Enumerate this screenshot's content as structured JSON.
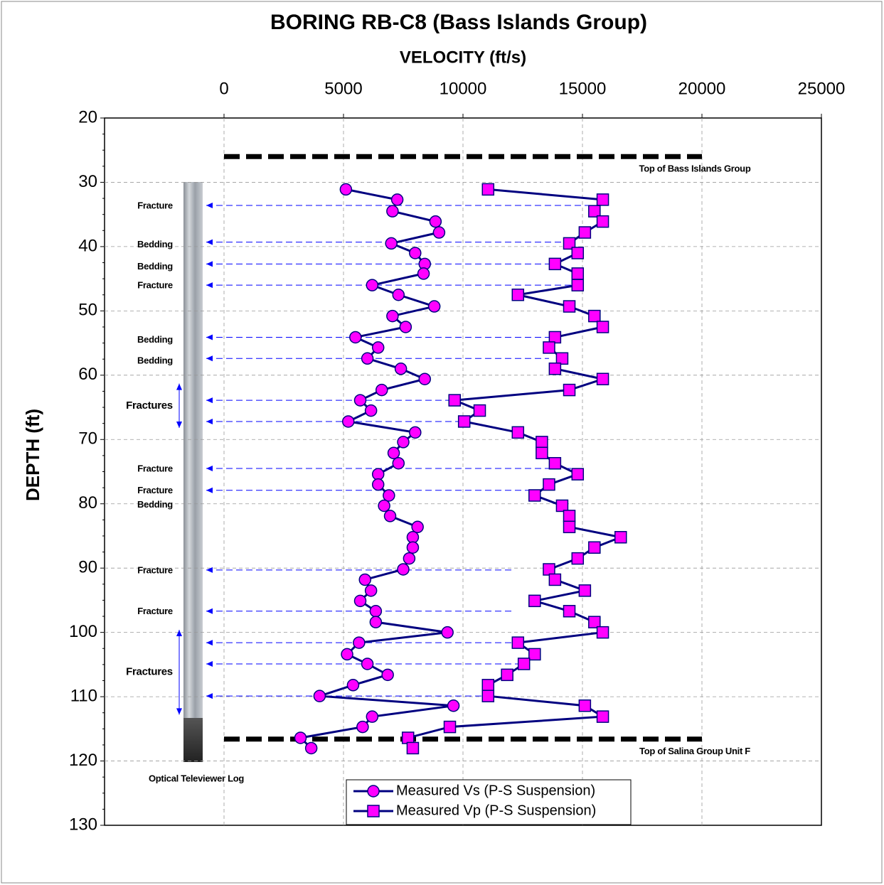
{
  "chart_data": {
    "type": "line",
    "title": "BORING RB-C8 (Bass Islands Group)",
    "x_label": "VELOCITY (ft/s)",
    "y_label": "DEPTH (ft)",
    "xlim": [
      -5000,
      25000
    ],
    "xticks": [
      0,
      5000,
      10000,
      15000,
      20000,
      25000
    ],
    "ylim": [
      20,
      130
    ],
    "yticks": [
      20,
      30,
      40,
      50,
      60,
      70,
      80,
      90,
      100,
      110,
      120,
      130
    ],
    "y_inverted": true,
    "grid": true,
    "series": [
      {
        "name": "Measured Vs (P-S Suspension)",
        "color": "#ff00ff",
        "marker": "circle",
        "y": [
          31.1,
          32.7,
          34.5,
          36.1,
          37.8,
          39.5,
          41.0,
          42.7,
          44.2,
          46.0,
          47.5,
          49.3,
          50.8,
          52.5,
          54.1,
          55.7,
          57.4,
          59.0,
          60.6,
          62.3,
          63.9,
          65.5,
          67.2,
          68.9,
          70.4,
          72.1,
          73.7,
          75.4,
          77.0,
          78.7,
          80.3,
          81.9,
          83.6,
          85.2,
          86.8,
          88.5,
          90.2,
          91.8,
          93.5,
          95.1,
          96.7,
          98.4,
          100.0,
          101.6,
          103.4,
          104.9,
          106.6,
          108.2,
          109.9,
          111.4,
          113.1,
          114.7,
          116.4,
          118.0
        ],
        "values": [
          5100,
          7250,
          7050,
          8850,
          9000,
          7000,
          8000,
          8400,
          8350,
          6200,
          7300,
          8800,
          7050,
          7600,
          5500,
          6450,
          6000,
          7400,
          8400,
          6600,
          5700,
          6150,
          5200,
          8000,
          7500,
          7100,
          7300,
          6450,
          6450,
          6900,
          6700,
          6950,
          8100,
          7900,
          7900,
          7750,
          7500,
          5900,
          6150,
          5700,
          6350,
          6350,
          9350,
          5650,
          5150,
          6000,
          6850,
          5400,
          4000,
          9600,
          6200,
          5800,
          3200,
          3650
        ]
      },
      {
        "name": "Measured Vp (P-S Suspension)",
        "color": "#ff00ff",
        "marker": "square",
        "y": [
          31.1,
          32.7,
          34.5,
          36.1,
          37.8,
          39.5,
          41.0,
          42.7,
          44.2,
          46.0,
          47.5,
          49.3,
          50.8,
          52.5,
          54.1,
          55.7,
          57.4,
          59.0,
          60.6,
          62.3,
          63.9,
          65.5,
          67.2,
          68.9,
          70.4,
          72.1,
          73.7,
          75.4,
          77.0,
          78.7,
          80.3,
          81.9,
          83.6,
          85.2,
          86.8,
          88.5,
          90.2,
          91.8,
          93.5,
          95.1,
          96.7,
          98.4,
          100.0,
          101.6,
          103.4,
          104.9,
          106.6,
          108.2,
          109.9,
          111.4,
          113.1,
          114.7,
          116.4,
          118.0
        ],
        "values": [
          11050,
          15850,
          15500,
          15850,
          15100,
          14450,
          14800,
          13850,
          14800,
          14800,
          12300,
          14450,
          15500,
          15850,
          13850,
          13600,
          14150,
          13850,
          15850,
          14450,
          9650,
          10700,
          10050,
          12300,
          13300,
          13300,
          13850,
          14800,
          13600,
          13000,
          14150,
          14450,
          14450,
          16600,
          15500,
          14800,
          13600,
          13850,
          15100,
          13000,
          14450,
          15500,
          15850,
          12300,
          13000,
          12550,
          11850,
          11050,
          11050,
          15100,
          15850,
          9450,
          7700,
          7900
        ]
      }
    ],
    "boundaries": [
      {
        "label": "Top of Bass Islands Group",
        "depth": 26.0,
        "x_range": [
          0,
          20000
        ]
      },
      {
        "label": "Top of Salina Group Unit F",
        "depth": 116.6,
        "x_range": [
          0,
          20000
        ]
      }
    ],
    "features": [
      {
        "label": "Fracture",
        "depths": [
          33.6
        ],
        "to": [
          15850
        ]
      },
      {
        "label": "Bedding",
        "depths": [
          39.3
        ],
        "to": [
          14450
        ]
      },
      {
        "label": "Bedding",
        "depths": [
          42.7
        ],
        "to": [
          13850
        ]
      },
      {
        "label": "Fracture",
        "depths": [
          46.0
        ],
        "to": [
          14800
        ]
      },
      {
        "label": "Bedding",
        "depths": [
          54.1
        ],
        "to": [
          13850
        ]
      },
      {
        "label": "Bedding",
        "depths": [
          57.4
        ],
        "to": [
          13600
        ]
      },
      {
        "label": "Fractures",
        "depths": [
          63.9,
          67.2
        ],
        "to": [
          9650,
          10050
        ],
        "span": [
          61.3,
          68.2
        ]
      },
      {
        "label": "Fracture",
        "depths": [
          74.5
        ],
        "to": [
          14800
        ]
      },
      {
        "label": "Fracture",
        "depths": [
          77.9
        ],
        "to": [
          13000
        ]
      },
      {
        "label": "Bedding",
        "depths": [],
        "to": []
      },
      {
        "label": "Fracture",
        "depths": [
          90.3
        ],
        "to": [
          12050
        ]
      },
      {
        "label": "Fracture",
        "depths": [
          96.7
        ],
        "to": [
          12050
        ]
      },
      {
        "label": "Fractures",
        "depths": [
          101.6,
          104.9,
          109.9
        ],
        "to": [
          12300,
          12550,
          11050
        ],
        "span": [
          99.6,
          112.8
        ]
      }
    ],
    "log_label": "Optical Televiewer Log"
  }
}
